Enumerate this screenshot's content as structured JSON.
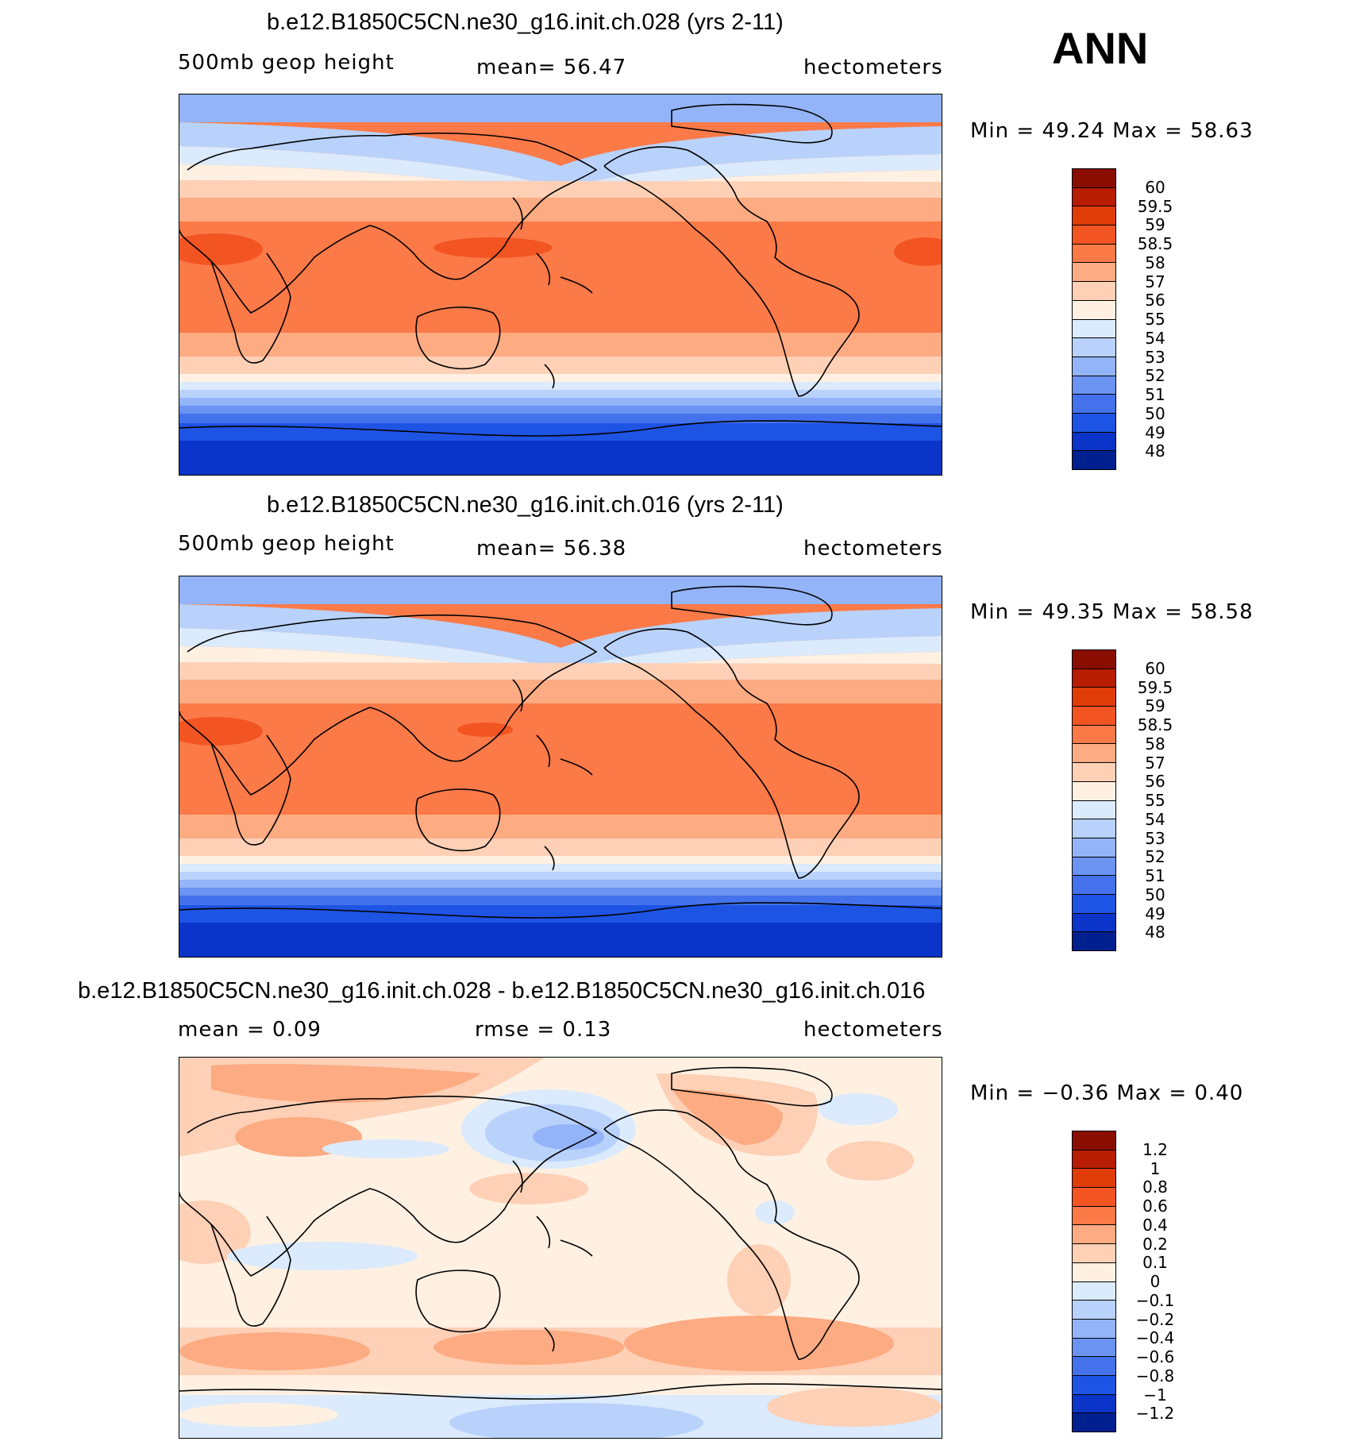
{
  "season": "ANN",
  "panels": [
    {
      "title": "b.e12.B1850C5CN.ne30_g16.init.ch.028 (yrs 2-11)",
      "left_label": "500mb geop height",
      "center_label": "mean=  56.47",
      "units": "hectometers",
      "minmax": "Min =  49.24 Max =  58.63",
      "colorbar_labels": [
        "60",
        "59.5",
        "59",
        "58.5",
        "58",
        "57",
        "56",
        "55",
        "54",
        "53",
        "52",
        "51",
        "50",
        "49",
        "48"
      ],
      "colorbar_colors": [
        "#8a0e00",
        "#b81c02",
        "#e03c08",
        "#f25522",
        "#fb7a48",
        "#fdab82",
        "#fed0b6",
        "#fff0e2",
        "#dbeafc",
        "#b9d2fb",
        "#93b4f8",
        "#6a93f2",
        "#4372ec",
        "#1d54e3",
        "#0b34c8",
        "#002090"
      ]
    },
    {
      "title": "b.e12.B1850C5CN.ne30_g16.init.ch.016 (yrs 2-11)",
      "left_label": "500mb geop height",
      "center_label": "mean=  56.38",
      "units": "hectometers",
      "minmax": "Min =  49.35 Max =  58.58",
      "colorbar_labels": [
        "60",
        "59.5",
        "59",
        "58.5",
        "58",
        "57",
        "56",
        "55",
        "54",
        "53",
        "52",
        "51",
        "50",
        "49",
        "48"
      ],
      "colorbar_colors": [
        "#8a0e00",
        "#b81c02",
        "#e03c08",
        "#f25522",
        "#fb7a48",
        "#fdab82",
        "#fed0b6",
        "#fff0e2",
        "#dbeafc",
        "#b9d2fb",
        "#93b4f8",
        "#6a93f2",
        "#4372ec",
        "#1d54e3",
        "#0b34c8",
        "#002090"
      ]
    },
    {
      "title": "b.e12.B1850C5CN.ne30_g16.init.ch.028 - b.e12.B1850C5CN.ne30_g16.init.ch.016",
      "left_label": "mean =   0.09",
      "center_label": "rmse =   0.13",
      "units": "hectometers",
      "minmax": "Min =  −0.36 Max =   0.40",
      "colorbar_labels": [
        "1.2",
        "1",
        "0.8",
        "0.6",
        "0.4",
        "0.2",
        "0.1",
        "0",
        "−0.1",
        "−0.2",
        "−0.4",
        "−0.6",
        "−0.8",
        "−1",
        "−1.2"
      ],
      "colorbar_colors": [
        "#8a0e00",
        "#b81c02",
        "#e03c08",
        "#f25522",
        "#fb7a48",
        "#fdab82",
        "#fed0b6",
        "#fff0e2",
        "#dbeafc",
        "#b9d2fb",
        "#93b4f8",
        "#6a93f2",
        "#4372ec",
        "#1d54e3",
        "#0b34c8",
        "#002090"
      ]
    }
  ]
}
